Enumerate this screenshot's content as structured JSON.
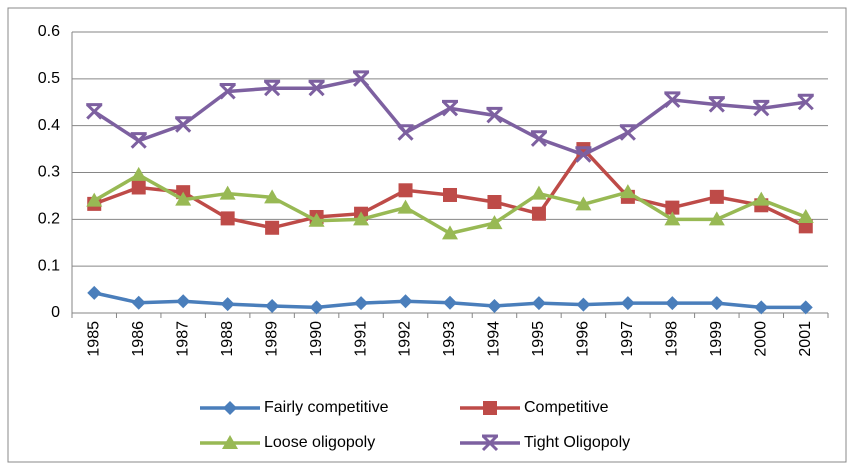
{
  "chart_data": {
    "type": "line",
    "categories": [
      "1985",
      "1986",
      "1987",
      "1988",
      "1989",
      "1990",
      "1991",
      "1992",
      "1993",
      "1994",
      "1995",
      "1996",
      "1997",
      "1998",
      "1999",
      "2000",
      "2001"
    ],
    "series": [
      {
        "name": "Fairly competitive",
        "color": "#4a7ebb",
        "marker": "diamond",
        "values": [
          0.043,
          0.022,
          0.025,
          0.019,
          0.015,
          0.012,
          0.021,
          0.025,
          0.022,
          0.015,
          0.021,
          0.018,
          0.021,
          0.021,
          0.021,
          0.012,
          0.012
        ]
      },
      {
        "name": "Competitive",
        "color": "#be4b48",
        "marker": "square",
        "values": [
          0.233,
          0.268,
          0.258,
          0.202,
          0.182,
          0.205,
          0.212,
          0.262,
          0.252,
          0.237,
          0.212,
          0.35,
          0.248,
          0.225,
          0.248,
          0.23,
          0.185
        ]
      },
      {
        "name": "Loose oligopoly",
        "color": "#98b954",
        "marker": "triangle",
        "values": [
          0.24,
          0.295,
          0.242,
          0.255,
          0.247,
          0.197,
          0.2,
          0.225,
          0.17,
          0.192,
          0.255,
          0.232,
          0.258,
          0.2,
          0.2,
          0.242,
          0.205
        ]
      },
      {
        "name": "Tight Oligopoly",
        "color": "#7d60a0",
        "marker": "star",
        "values": [
          0.43,
          0.368,
          0.402,
          0.473,
          0.48,
          0.48,
          0.5,
          0.385,
          0.437,
          0.422,
          0.372,
          0.338,
          0.385,
          0.455,
          0.445,
          0.437,
          0.45
        ]
      }
    ],
    "ylim": [
      0,
      0.6
    ],
    "yticks": [
      0,
      0.1,
      0.2,
      0.3,
      0.4,
      0.5,
      0.6
    ],
    "grid": true,
    "legend": "bottom"
  }
}
